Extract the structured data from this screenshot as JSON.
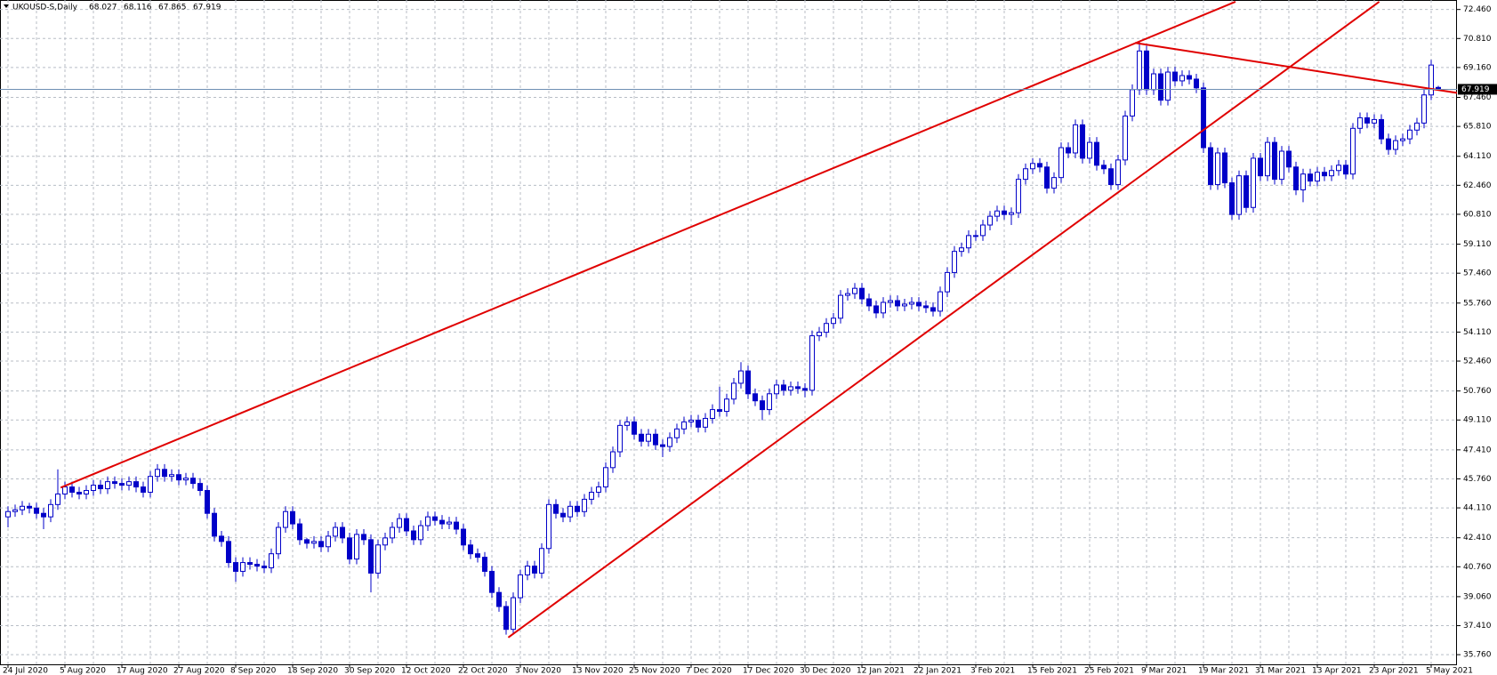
{
  "chart_data": {
    "type": "candlestick",
    "title": "UKOUSD-S,Daily",
    "color": "#0000c8",
    "up_fill": "#ffffff",
    "trendline_color": "#e00000",
    "price_line_color": "#6f8fb3",
    "grid": true,
    "ylim": [
      35.16,
      73.0
    ],
    "yticks": [
      {
        "value": 35.76,
        "label": "35.760"
      },
      {
        "value": 37.41,
        "label": "37.410"
      },
      {
        "value": 39.06,
        "label": "39.060"
      },
      {
        "value": 40.76,
        "label": "40.760"
      },
      {
        "value": 42.41,
        "label": "42.410"
      },
      {
        "value": 44.11,
        "label": "44.110"
      },
      {
        "value": 45.76,
        "label": "45.760"
      },
      {
        "value": 47.41,
        "label": "47.410"
      },
      {
        "value": 49.11,
        "label": "49.110"
      },
      {
        "value": 50.76,
        "label": "50.760"
      },
      {
        "value": 52.46,
        "label": "52.460"
      },
      {
        "value": 54.11,
        "label": "54.110"
      },
      {
        "value": 55.76,
        "label": "55.760"
      },
      {
        "value": 57.46,
        "label": "57.460"
      },
      {
        "value": 59.11,
        "label": "59.110"
      },
      {
        "value": 60.81,
        "label": "60.810"
      },
      {
        "value": 62.46,
        "label": "62.460"
      },
      {
        "value": 64.11,
        "label": "64.110"
      },
      {
        "value": 65.81,
        "label": "65.810"
      },
      {
        "value": 67.46,
        "label": "67.460"
      },
      {
        "value": 69.16,
        "label": "69.160"
      },
      {
        "value": 70.81,
        "label": "70.810"
      },
      {
        "value": 72.46,
        "label": "72.460"
      }
    ],
    "categories": [
      "24 Jul 2020",
      null,
      null,
      null,
      null,
      null,
      null,
      null,
      "5 Aug 2020",
      null,
      null,
      null,
      null,
      null,
      null,
      null,
      "17 Aug 2020",
      null,
      null,
      null,
      null,
      null,
      null,
      null,
      "27 Aug 2020",
      null,
      null,
      null,
      null,
      null,
      null,
      null,
      "8 Sep 2020",
      null,
      null,
      null,
      null,
      null,
      null,
      null,
      "18 Sep 2020",
      null,
      null,
      null,
      null,
      null,
      null,
      null,
      "30 Sep 2020",
      null,
      null,
      null,
      null,
      null,
      null,
      null,
      "12 Oct 2020",
      null,
      null,
      null,
      null,
      null,
      null,
      null,
      "22 Oct 2020",
      null,
      null,
      null,
      null,
      null,
      null,
      null,
      "3 Nov 2020",
      null,
      null,
      null,
      null,
      null,
      null,
      null,
      "13 Nov 2020",
      null,
      null,
      null,
      null,
      null,
      null,
      null,
      "25 Nov 2020",
      null,
      null,
      null,
      null,
      null,
      null,
      null,
      "7 Dec 2020",
      null,
      null,
      null,
      null,
      null,
      null,
      null,
      "17 Dec 2020",
      null,
      null,
      null,
      null,
      null,
      null,
      null,
      "30 Dec 2020",
      null,
      null,
      null,
      null,
      null,
      null,
      null,
      "12 Jan 2021",
      null,
      null,
      null,
      null,
      null,
      null,
      null,
      "22 Jan 2021",
      null,
      null,
      null,
      null,
      null,
      null,
      null,
      "3 Feb 2021",
      null,
      null,
      null,
      null,
      null,
      null,
      null,
      "15 Feb 2021",
      null,
      null,
      null,
      null,
      null,
      null,
      null,
      "25 Feb 2021",
      null,
      null,
      null,
      null,
      null,
      null,
      null,
      "9 Mar 2021",
      null,
      null,
      null,
      null,
      null,
      null,
      null,
      "19 Mar 2021",
      null,
      null,
      null,
      null,
      null,
      null,
      null,
      "31 Mar 2021",
      null,
      null,
      null,
      null,
      null,
      null,
      null,
      "13 Apr 2021",
      null,
      null,
      null,
      null,
      null,
      null,
      null,
      "23 Apr 2021",
      null,
      null,
      null,
      null,
      null,
      null,
      null,
      "5 May 2021",
      null
    ],
    "open": [
      43.6,
      43.9,
      44.0,
      44.2,
      44.1,
      43.8,
      43.6,
      44.3,
      44.9,
      45.3,
      45.0,
      44.9,
      45.1,
      45.4,
      45.2,
      45.6,
      45.5,
      45.4,
      45.6,
      45.3,
      45.0,
      45.9,
      46.3,
      45.9,
      46.0,
      45.7,
      45.8,
      45.5,
      45.1,
      43.8,
      42.5,
      42.2,
      41.0,
      40.5,
      41.0,
      40.9,
      40.8,
      40.7,
      41.5,
      43.0,
      43.9,
      43.2,
      42.3,
      42.1,
      42.2,
      41.9,
      42.5,
      43.0,
      42.4,
      41.2,
      42.6,
      42.3,
      40.4,
      42.0,
      42.4,
      43.0,
      43.5,
      42.8,
      42.3,
      43.1,
      43.6,
      43.4,
      43.2,
      43.3,
      42.9,
      42.0,
      41.5,
      41.3,
      40.5,
      39.3,
      38.5,
      37.2,
      39.0,
      40.3,
      40.8,
      40.4,
      41.8,
      44.3,
      43.8,
      43.6,
      44.2,
      43.9,
      44.6,
      45.0,
      45.3,
      46.4,
      47.3,
      48.8,
      49.0,
      48.3,
      47.9,
      48.3,
      47.7,
      47.6,
      48.1,
      48.6,
      49.0,
      49.1,
      48.7,
      49.2,
      49.7,
      49.6,
      50.3,
      51.2,
      51.9,
      50.6,
      50.2,
      49.7,
      50.6,
      51.1,
      50.8,
      51.0,
      50.9,
      50.8,
      53.9,
      54.1,
      54.6,
      54.9,
      56.2,
      56.3,
      56.6,
      56.0,
      55.6,
      55.2,
      55.8,
      55.9,
      55.6,
      55.7,
      55.8,
      55.6,
      55.5,
      55.3,
      56.4,
      57.5,
      58.7,
      58.9,
      59.6,
      59.6,
      60.2,
      60.7,
      61.0,
      60.8,
      60.9,
      62.8,
      63.4,
      63.7,
      63.5,
      62.3,
      62.9,
      64.6,
      64.3,
      65.9,
      64.0,
      64.9,
      63.6,
      63.4,
      62.5,
      63.9,
      66.4,
      67.9,
      70.1,
      67.9,
      68.8,
      67.3,
      68.9,
      68.4,
      68.7,
      68.5,
      68.0,
      64.6,
      62.5,
      64.3,
      62.6,
      60.8,
      63.0,
      61.2,
      64.0,
      63.0,
      64.9,
      62.8,
      64.4,
      63.5,
      62.2,
      63.1,
      62.7,
      63.2,
      63.0,
      63.3,
      63.6,
      63.1,
      65.7,
      66.3,
      66.0,
      66.2,
      65.1,
      64.5,
      65.0,
      65.1,
      65.6,
      66.0,
      67.6,
      68.027
    ],
    "high": [
      44.2,
      44.3,
      44.5,
      44.4,
      44.4,
      44.1,
      44.6,
      46.3,
      45.6,
      45.6,
      45.3,
      45.4,
      45.7,
      45.7,
      45.9,
      45.9,
      45.8,
      45.9,
      45.9,
      45.6,
      46.2,
      46.6,
      46.6,
      46.3,
      46.3,
      46.1,
      46.1,
      45.8,
      45.4,
      44.1,
      42.8,
      42.5,
      41.3,
      41.3,
      41.3,
      41.2,
      41.1,
      41.8,
      43.3,
      44.2,
      44.2,
      43.5,
      42.4,
      42.5,
      42.5,
      42.8,
      43.3,
      43.3,
      42.7,
      42.9,
      42.9,
      42.6,
      42.3,
      42.7,
      43.3,
      43.8,
      43.8,
      43.1,
      43.4,
      43.9,
      43.9,
      43.7,
      43.6,
      43.6,
      43.2,
      42.3,
      41.8,
      41.6,
      40.8,
      39.6,
      38.8,
      39.3,
      40.6,
      41.1,
      41.1,
      42.1,
      44.6,
      44.6,
      44.1,
      44.5,
      44.5,
      44.9,
      45.3,
      45.6,
      46.7,
      47.6,
      49.1,
      49.3,
      49.3,
      48.6,
      48.6,
      48.6,
      48.0,
      48.4,
      48.9,
      49.3,
      49.4,
      49.4,
      49.5,
      50.0,
      51.0,
      50.6,
      51.5,
      52.4,
      52.2,
      50.9,
      50.5,
      50.9,
      51.4,
      51.4,
      51.3,
      51.3,
      51.2,
      54.2,
      54.4,
      54.9,
      55.2,
      56.5,
      56.6,
      56.9,
      56.9,
      56.3,
      55.9,
      56.1,
      56.2,
      56.2,
      56.0,
      56.1,
      56.1,
      55.9,
      55.8,
      56.7,
      57.8,
      59.0,
      59.2,
      59.9,
      59.9,
      60.5,
      61.0,
      61.3,
      61.3,
      61.2,
      63.1,
      63.7,
      64.0,
      64.0,
      63.8,
      63.2,
      64.9,
      64.9,
      66.2,
      66.2,
      65.2,
      65.2,
      63.9,
      63.7,
      64.2,
      66.7,
      68.2,
      70.6,
      70.4,
      69.1,
      69.1,
      69.2,
      69.2,
      69.0,
      69.0,
      68.8,
      68.3,
      64.9,
      64.6,
      64.6,
      62.9,
      63.3,
      63.3,
      64.3,
      64.3,
      65.2,
      65.2,
      64.7,
      64.7,
      63.8,
      63.4,
      63.4,
      63.5,
      63.5,
      63.6,
      63.9,
      63.9,
      66.0,
      66.6,
      66.6,
      66.5,
      66.5,
      65.4,
      65.3,
      65.4,
      65.9,
      66.3,
      67.9,
      69.6,
      68.116
    ],
    "low": [
      43.0,
      43.6,
      43.7,
      43.8,
      43.5,
      42.9,
      43.3,
      44.0,
      44.6,
      44.7,
      44.6,
      44.6,
      44.8,
      44.9,
      44.9,
      45.2,
      45.1,
      45.1,
      45.0,
      44.7,
      44.7,
      45.6,
      45.6,
      45.6,
      45.4,
      45.4,
      45.2,
      44.8,
      43.5,
      42.2,
      41.9,
      40.7,
      39.9,
      40.2,
      40.6,
      40.5,
      40.4,
      40.4,
      41.2,
      42.7,
      42.9,
      42.0,
      41.8,
      41.8,
      41.6,
      41.6,
      42.2,
      42.1,
      40.9,
      40.9,
      42.0,
      39.3,
      40.1,
      41.7,
      42.1,
      42.7,
      42.5,
      42.0,
      42.0,
      42.8,
      43.1,
      42.9,
      42.9,
      42.6,
      41.7,
      41.2,
      41.0,
      40.2,
      39.0,
      38.2,
      36.9,
      36.9,
      38.7,
      40.0,
      40.1,
      40.1,
      41.5,
      43.5,
      43.3,
      43.3,
      43.6,
      43.6,
      44.3,
      44.7,
      45.0,
      46.1,
      47.0,
      48.5,
      48.0,
      47.6,
      47.6,
      47.4,
      47.0,
      47.3,
      47.8,
      48.3,
      48.7,
      48.4,
      48.4,
      48.9,
      49.3,
      49.3,
      50.0,
      50.9,
      50.3,
      49.9,
      49.1,
      49.4,
      50.3,
      50.5,
      50.5,
      50.6,
      50.4,
      50.5,
      53.6,
      53.8,
      54.3,
      54.6,
      55.9,
      56.0,
      55.7,
      55.3,
      54.9,
      54.9,
      55.5,
      55.3,
      55.3,
      55.4,
      55.3,
      55.2,
      55.0,
      55.0,
      56.1,
      57.2,
      58.4,
      58.6,
      59.3,
      59.3,
      59.9,
      60.4,
      60.5,
      60.2,
      60.6,
      62.5,
      63.1,
      63.2,
      62.0,
      62.0,
      62.6,
      64.0,
      64.0,
      63.7,
      63.7,
      63.3,
      63.1,
      62.2,
      62.2,
      63.6,
      66.1,
      67.6,
      67.6,
      67.6,
      67.0,
      67.0,
      68.1,
      68.1,
      68.2,
      67.7,
      64.3,
      62.2,
      62.2,
      62.3,
      60.5,
      60.5,
      60.9,
      60.9,
      62.7,
      62.7,
      62.5,
      62.5,
      63.2,
      61.9,
      61.5,
      62.4,
      62.4,
      62.7,
      62.7,
      63.0,
      62.8,
      62.8,
      65.4,
      65.7,
      65.7,
      64.8,
      64.2,
      64.2,
      64.7,
      64.8,
      65.3,
      65.7,
      67.3,
      67.865
    ],
    "close": [
      43.9,
      44.0,
      44.2,
      44.1,
      43.8,
      43.6,
      44.3,
      44.9,
      45.3,
      45.0,
      44.9,
      45.1,
      45.4,
      45.2,
      45.6,
      45.5,
      45.4,
      45.6,
      45.3,
      45.0,
      45.9,
      46.3,
      45.9,
      46.0,
      45.7,
      45.8,
      45.5,
      45.1,
      43.8,
      42.5,
      42.2,
      41.0,
      40.5,
      41.0,
      40.9,
      40.8,
      40.7,
      41.5,
      43.0,
      43.9,
      43.2,
      42.3,
      42.1,
      42.2,
      41.9,
      42.5,
      43.0,
      42.4,
      41.2,
      42.6,
      42.3,
      40.4,
      42.0,
      42.4,
      43.0,
      43.5,
      42.8,
      42.3,
      43.1,
      43.6,
      43.4,
      43.2,
      43.3,
      42.9,
      42.0,
      41.5,
      41.3,
      40.5,
      39.3,
      38.5,
      37.2,
      39.0,
      40.3,
      40.8,
      40.4,
      41.8,
      44.3,
      43.8,
      43.6,
      44.2,
      43.9,
      44.6,
      45.0,
      45.3,
      46.4,
      47.3,
      48.8,
      49.0,
      48.3,
      47.9,
      48.3,
      47.7,
      47.6,
      48.1,
      48.6,
      49.0,
      49.1,
      48.7,
      49.2,
      49.7,
      49.6,
      50.3,
      51.2,
      51.9,
      50.6,
      50.2,
      49.7,
      50.6,
      51.1,
      50.8,
      51.0,
      50.9,
      50.8,
      53.9,
      54.1,
      54.6,
      54.9,
      56.2,
      56.3,
      56.6,
      56.0,
      55.6,
      55.2,
      55.8,
      55.9,
      55.6,
      55.7,
      55.8,
      55.6,
      55.5,
      55.3,
      56.4,
      57.5,
      58.7,
      58.9,
      59.6,
      59.6,
      60.2,
      60.7,
      61.0,
      60.8,
      60.9,
      62.8,
      63.4,
      63.7,
      63.5,
      62.3,
      62.9,
      64.6,
      64.3,
      65.9,
      64.0,
      64.9,
      63.6,
      63.4,
      62.5,
      63.9,
      66.4,
      67.9,
      70.1,
      67.9,
      68.8,
      67.3,
      68.9,
      68.4,
      68.7,
      68.5,
      68.0,
      64.6,
      62.5,
      64.3,
      62.6,
      60.8,
      63.0,
      61.2,
      64.0,
      63.0,
      64.9,
      62.8,
      64.4,
      63.5,
      62.2,
      63.1,
      62.7,
      63.2,
      63.0,
      63.3,
      63.6,
      63.1,
      65.7,
      66.3,
      66.0,
      66.2,
      65.1,
      64.5,
      65.0,
      65.1,
      65.6,
      66.0,
      67.6,
      69.3,
      67.919
    ],
    "trendlines": [
      {
        "x": [
          7.4,
          172.5
        ],
        "y": [
          45.26,
          72.9
        ]
      },
      {
        "x": [
          70.3,
          192.7
        ],
        "y": [
          36.74,
          72.9
        ]
      },
      {
        "x": [
          158.4,
          204.2
        ],
        "y": [
          70.56,
          67.68
        ]
      }
    ]
  }
}
